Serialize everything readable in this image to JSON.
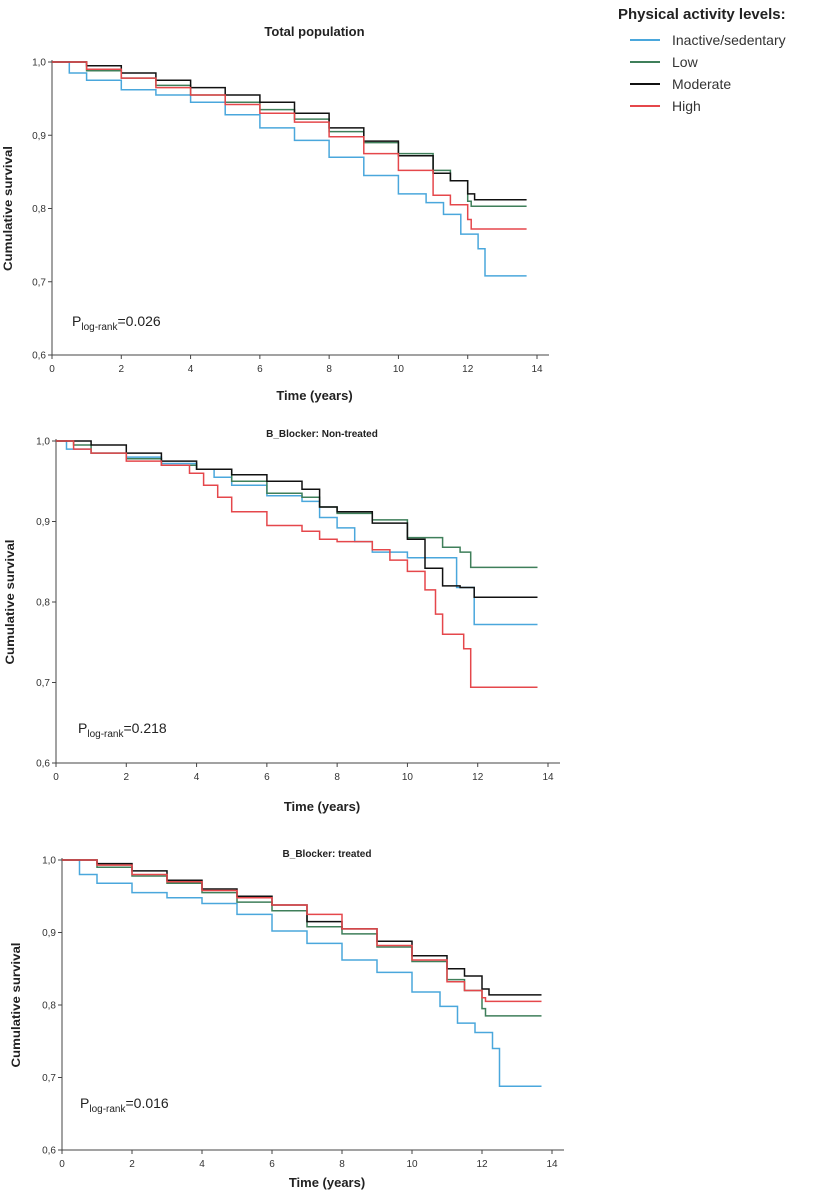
{
  "legend": {
    "title": "Physical activity levels:",
    "items": [
      {
        "label": "Inactive/sedentary",
        "color": "#4aa7dc"
      },
      {
        "label": "Low",
        "color": "#3f7f5a"
      },
      {
        "label": "Moderate",
        "color": "#111111"
      },
      {
        "label": "High",
        "color": "#e5474b"
      }
    ]
  },
  "chart_data": [
    {
      "type": "line",
      "step": true,
      "title": "Total population",
      "xlabel": "Time (years)",
      "ylabel": "Cumulative survival",
      "xlim": [
        0,
        14
      ],
      "ylim": [
        0.6,
        1.0
      ],
      "xticks": [
        "0",
        "2",
        "4",
        "6",
        "8",
        "10",
        "12",
        "14"
      ],
      "yticks": [
        "0,6",
        "0,7",
        "0,8",
        "0,9",
        "1,0"
      ],
      "annotation": {
        "p": "P",
        "sub": "log-rank",
        "value": "=0.026"
      },
      "series": [
        {
          "name": "Inactive/sedentary",
          "color": "#4aa7dc",
          "points": [
            [
              0,
              1.0
            ],
            [
              0.5,
              0.985
            ],
            [
              1,
              0.975
            ],
            [
              2,
              0.962
            ],
            [
              3,
              0.955
            ],
            [
              4,
              0.945
            ],
            [
              5,
              0.928
            ],
            [
              6,
              0.91
            ],
            [
              7,
              0.893
            ],
            [
              8,
              0.87
            ],
            [
              9,
              0.845
            ],
            [
              10,
              0.82
            ],
            [
              10.8,
              0.808
            ],
            [
              11.3,
              0.792
            ],
            [
              11.8,
              0.765
            ],
            [
              12.3,
              0.745
            ],
            [
              12.5,
              0.708
            ],
            [
              13.7,
              0.708
            ]
          ]
        },
        {
          "name": "Low",
          "color": "#3f7f5a",
          "points": [
            [
              0,
              1.0
            ],
            [
              1,
              0.988
            ],
            [
              2,
              0.978
            ],
            [
              3,
              0.968
            ],
            [
              4,
              0.955
            ],
            [
              5,
              0.945
            ],
            [
              6,
              0.935
            ],
            [
              7,
              0.922
            ],
            [
              8,
              0.905
            ],
            [
              9,
              0.89
            ],
            [
              10,
              0.875
            ],
            [
              11,
              0.852
            ],
            [
              11.5,
              0.838
            ],
            [
              12,
              0.81
            ],
            [
              12.1,
              0.803
            ],
            [
              13.7,
              0.803
            ]
          ]
        },
        {
          "name": "Moderate",
          "color": "#111111",
          "points": [
            [
              0,
              1.0
            ],
            [
              1,
              0.995
            ],
            [
              2,
              0.985
            ],
            [
              3,
              0.975
            ],
            [
              4,
              0.965
            ],
            [
              5,
              0.955
            ],
            [
              6,
              0.945
            ],
            [
              7,
              0.93
            ],
            [
              8,
              0.91
            ],
            [
              9,
              0.892
            ],
            [
              10,
              0.872
            ],
            [
              11,
              0.848
            ],
            [
              11.5,
              0.838
            ],
            [
              12,
              0.82
            ],
            [
              12.2,
              0.812
            ],
            [
              13.7,
              0.812
            ]
          ]
        },
        {
          "name": "High",
          "color": "#e5474b",
          "points": [
            [
              0,
              1.0
            ],
            [
              1,
              0.99
            ],
            [
              2,
              0.978
            ],
            [
              3,
              0.965
            ],
            [
              4,
              0.955
            ],
            [
              5,
              0.942
            ],
            [
              6,
              0.93
            ],
            [
              7,
              0.918
            ],
            [
              8,
              0.898
            ],
            [
              9,
              0.875
            ],
            [
              10,
              0.852
            ],
            [
              11,
              0.818
            ],
            [
              11.5,
              0.805
            ],
            [
              12,
              0.785
            ],
            [
              12.1,
              0.772
            ],
            [
              13.7,
              0.772
            ]
          ]
        }
      ]
    },
    {
      "type": "line",
      "step": true,
      "title": "B_Blocker: Non-treated",
      "xlabel": "Time (years)",
      "ylabel": "Cumulative survival",
      "xlim": [
        0,
        14
      ],
      "ylim": [
        0.6,
        1.0
      ],
      "xticks": [
        "0",
        "2",
        "4",
        "6",
        "8",
        "10",
        "12",
        "14"
      ],
      "yticks": [
        "0,6",
        "0,7",
        "0,8",
        "0,9",
        "1,0"
      ],
      "annotation": {
        "p": "P",
        "sub": "log-rank",
        "value": "=0.218"
      },
      "series": [
        {
          "name": "Inactive/sedentary",
          "color": "#4aa7dc",
          "points": [
            [
              0,
              1.0
            ],
            [
              0.3,
              0.99
            ],
            [
              1,
              0.985
            ],
            [
              2,
              0.98
            ],
            [
              3,
              0.972
            ],
            [
              4,
              0.965
            ],
            [
              4.5,
              0.955
            ],
            [
              5,
              0.945
            ],
            [
              6,
              0.932
            ],
            [
              7,
              0.925
            ],
            [
              7.5,
              0.905
            ],
            [
              8,
              0.892
            ],
            [
              8.5,
              0.875
            ],
            [
              9,
              0.862
            ],
            [
              10,
              0.855
            ],
            [
              11,
              0.855
            ],
            [
              11.4,
              0.818
            ],
            [
              11.9,
              0.772
            ],
            [
              13.7,
              0.772
            ]
          ]
        },
        {
          "name": "Low",
          "color": "#3f7f5a",
          "points": [
            [
              0,
              1.0
            ],
            [
              0.5,
              0.995
            ],
            [
              1,
              0.985
            ],
            [
              2,
              0.978
            ],
            [
              3,
              0.97
            ],
            [
              4,
              0.965
            ],
            [
              5,
              0.95
            ],
            [
              6,
              0.935
            ],
            [
              7,
              0.93
            ],
            [
              7.5,
              0.918
            ],
            [
              8,
              0.91
            ],
            [
              9,
              0.902
            ],
            [
              10,
              0.88
            ],
            [
              11,
              0.868
            ],
            [
              11.5,
              0.862
            ],
            [
              11.8,
              0.843
            ],
            [
              13.7,
              0.843
            ]
          ]
        },
        {
          "name": "Moderate",
          "color": "#111111",
          "points": [
            [
              0,
              1.0
            ],
            [
              1,
              0.995
            ],
            [
              2,
              0.985
            ],
            [
              3,
              0.975
            ],
            [
              4,
              0.965
            ],
            [
              5,
              0.958
            ],
            [
              6,
              0.95
            ],
            [
              7,
              0.94
            ],
            [
              7.5,
              0.918
            ],
            [
              8,
              0.912
            ],
            [
              9,
              0.898
            ],
            [
              10,
              0.878
            ],
            [
              10.5,
              0.842
            ],
            [
              11,
              0.82
            ],
            [
              11.5,
              0.818
            ],
            [
              11.9,
              0.806
            ],
            [
              13.7,
              0.806
            ]
          ]
        },
        {
          "name": "High",
          "color": "#e5474b",
          "points": [
            [
              0,
              1.0
            ],
            [
              0.5,
              0.99
            ],
            [
              1,
              0.985
            ],
            [
              2,
              0.975
            ],
            [
              3,
              0.97
            ],
            [
              3.8,
              0.96
            ],
            [
              4.2,
              0.945
            ],
            [
              4.6,
              0.93
            ],
            [
              5,
              0.912
            ],
            [
              6,
              0.895
            ],
            [
              7,
              0.888
            ],
            [
              7.5,
              0.878
            ],
            [
              8,
              0.875
            ],
            [
              9,
              0.865
            ],
            [
              9.5,
              0.852
            ],
            [
              10,
              0.838
            ],
            [
              10.5,
              0.815
            ],
            [
              10.8,
              0.785
            ],
            [
              11,
              0.76
            ],
            [
              11.6,
              0.742
            ],
            [
              11.8,
              0.694
            ],
            [
              13.7,
              0.694
            ]
          ]
        }
      ]
    },
    {
      "type": "line",
      "step": true,
      "title": "B_Blocker: treated",
      "xlabel": "Time (years)",
      "ylabel": "Cumulative survival",
      "xlim": [
        0,
        14
      ],
      "ylim": [
        0.6,
        1.0
      ],
      "xticks": [
        "0",
        "2",
        "4",
        "6",
        "8",
        "10",
        "12",
        "14"
      ],
      "yticks": [
        "0,6",
        "0,7",
        "0,8",
        "0,9",
        "1,0"
      ],
      "annotation": {
        "p": "P",
        "sub": "log-rank",
        "value": "=0.016"
      },
      "series": [
        {
          "name": "Inactive/sedentary",
          "color": "#4aa7dc",
          "points": [
            [
              0,
              1.0
            ],
            [
              0.5,
              0.98
            ],
            [
              1,
              0.968
            ],
            [
              2,
              0.955
            ],
            [
              3,
              0.948
            ],
            [
              4,
              0.94
            ],
            [
              5,
              0.925
            ],
            [
              6,
              0.902
            ],
            [
              7,
              0.885
            ],
            [
              8,
              0.862
            ],
            [
              9,
              0.845
            ],
            [
              10,
              0.818
            ],
            [
              10.8,
              0.798
            ],
            [
              11.3,
              0.775
            ],
            [
              11.8,
              0.762
            ],
            [
              12.3,
              0.74
            ],
            [
              12.5,
              0.688
            ],
            [
              13.7,
              0.688
            ]
          ]
        },
        {
          "name": "Low",
          "color": "#3f7f5a",
          "points": [
            [
              0,
              1.0
            ],
            [
              1,
              0.99
            ],
            [
              2,
              0.978
            ],
            [
              3,
              0.968
            ],
            [
              4,
              0.955
            ],
            [
              5,
              0.942
            ],
            [
              6,
              0.93
            ],
            [
              7,
              0.908
            ],
            [
              8,
              0.898
            ],
            [
              9,
              0.88
            ],
            [
              10,
              0.86
            ],
            [
              11,
              0.835
            ],
            [
              11.5,
              0.82
            ],
            [
              12,
              0.795
            ],
            [
              12.1,
              0.785
            ],
            [
              13.7,
              0.785
            ]
          ]
        },
        {
          "name": "Moderate",
          "color": "#111111",
          "points": [
            [
              0,
              1.0
            ],
            [
              1,
              0.995
            ],
            [
              2,
              0.985
            ],
            [
              3,
              0.972
            ],
            [
              4,
              0.96
            ],
            [
              5,
              0.95
            ],
            [
              6,
              0.938
            ],
            [
              7,
              0.915
            ],
            [
              8,
              0.905
            ],
            [
              9,
              0.888
            ],
            [
              10,
              0.868
            ],
            [
              11,
              0.85
            ],
            [
              11.5,
              0.84
            ],
            [
              12,
              0.822
            ],
            [
              12.2,
              0.814
            ],
            [
              13.7,
              0.814
            ]
          ]
        },
        {
          "name": "High",
          "color": "#e5474b",
          "points": [
            [
              0,
              1.0
            ],
            [
              1,
              0.993
            ],
            [
              2,
              0.98
            ],
            [
              3,
              0.97
            ],
            [
              4,
              0.958
            ],
            [
              5,
              0.948
            ],
            [
              6,
              0.938
            ],
            [
              7,
              0.925
            ],
            [
              8,
              0.905
            ],
            [
              9,
              0.882
            ],
            [
              10,
              0.862
            ],
            [
              11,
              0.832
            ],
            [
              11.5,
              0.82
            ],
            [
              12,
              0.81
            ],
            [
              12.1,
              0.805
            ],
            [
              13.7,
              0.805
            ]
          ]
        }
      ]
    }
  ]
}
